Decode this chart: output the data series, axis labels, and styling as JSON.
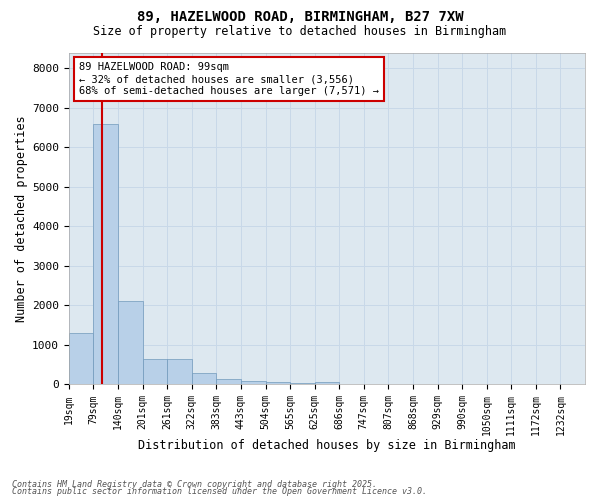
{
  "title1": "89, HAZELWOOD ROAD, BIRMINGHAM, B27 7XW",
  "title2": "Size of property relative to detached houses in Birmingham",
  "xlabel": "Distribution of detached houses by size in Birmingham",
  "ylabel": "Number of detached properties",
  "annotation_title": "89 HAZELWOOD ROAD: 99sqm",
  "annotation_line1": "← 32% of detached houses are smaller (3,556)",
  "annotation_line2": "68% of semi-detached houses are larger (7,571) →",
  "vline_bin_index": 1,
  "categories": [
    "19sqm",
    "79sqm",
    "140sqm",
    "201sqm",
    "261sqm",
    "322sqm",
    "383sqm",
    "443sqm",
    "504sqm",
    "565sqm",
    "625sqm",
    "686sqm",
    "747sqm",
    "807sqm",
    "868sqm",
    "929sqm",
    "990sqm",
    "1050sqm",
    "1111sqm",
    "1172sqm",
    "1232sqm"
  ],
  "values": [
    1300,
    6600,
    2100,
    650,
    650,
    300,
    130,
    100,
    60,
    40,
    60,
    10,
    5,
    5,
    5,
    2,
    2,
    2,
    1,
    1,
    1
  ],
  "bar_color": "#b8d0e8",
  "bar_edge_color": "#7099bb",
  "vline_color": "#cc0000",
  "annotation_box_edge_color": "#cc0000",
  "bg_color": "#dde8f0",
  "grid_color": "#c8d8e8",
  "ylim": [
    0,
    8400
  ],
  "yticks": [
    0,
    1000,
    2000,
    3000,
    4000,
    5000,
    6000,
    7000,
    8000
  ],
  "footer1": "Contains HM Land Registry data © Crown copyright and database right 2025.",
  "footer2": "Contains public sector information licensed under the Open Government Licence v3.0."
}
